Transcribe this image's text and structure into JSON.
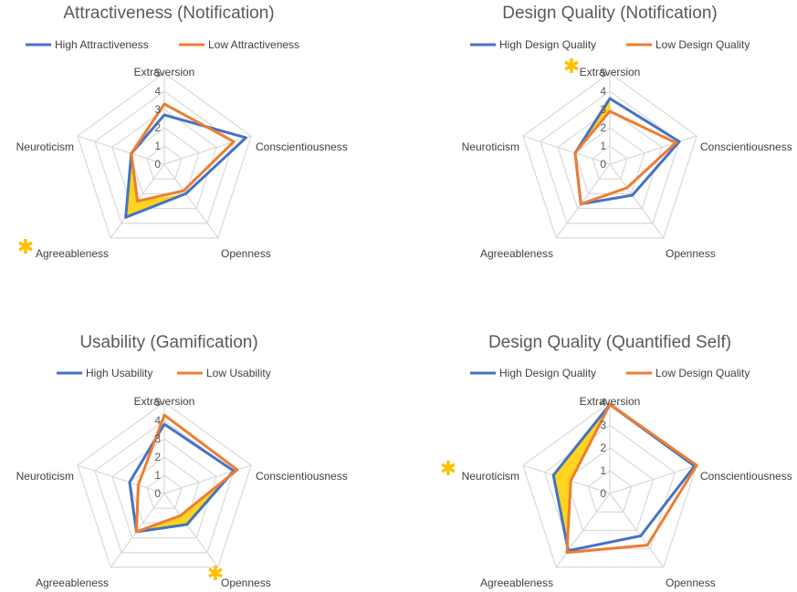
{
  "colors": {
    "high": "#4472C4",
    "low": "#ED7D31",
    "highlight": "#FFD320",
    "star": "#FFC000",
    "grid": "#D9D9D9"
  },
  "chart_data": [
    {
      "type": "radar",
      "title": "Attractiveness (Notification)",
      "axes": [
        "Extraversion",
        "Conscientiousness",
        "Openness",
        "Agreeableness",
        "Neuroticism"
      ],
      "ticks": [
        "0",
        "1",
        "2",
        "3",
        "4",
        "5"
      ],
      "rmax": 5,
      "starred_axis": "Agreeableness",
      "grid": true,
      "legend_position": "top",
      "series": [
        {
          "name": "High Attractiveness",
          "color_key": "high",
          "values": [
            2.7,
            4.7,
            2.0,
            3.6,
            1.9
          ]
        },
        {
          "name": "Low Attractiveness",
          "color_key": "low",
          "values": [
            3.3,
            4.0,
            1.8,
            2.5,
            1.9
          ]
        }
      ]
    },
    {
      "type": "radar",
      "title": "Design Quality (Notification)",
      "axes": [
        "Extraversion",
        "Conscientiousness",
        "Openness",
        "Agreeableness",
        "Neuroticism"
      ],
      "ticks": [
        "0",
        "1",
        "2",
        "3",
        "4",
        "5"
      ],
      "rmax": 5,
      "starred_axis": "Extraversion",
      "grid": true,
      "legend_position": "top",
      "series": [
        {
          "name": "High Design Quality",
          "color_key": "high",
          "values": [
            3.6,
            4.0,
            2.1,
            2.7,
            2.0
          ]
        },
        {
          "name": "Low Design Quality",
          "color_key": "low",
          "values": [
            2.9,
            3.8,
            1.6,
            2.7,
            2.0
          ]
        }
      ]
    },
    {
      "type": "radar",
      "title": "Usability (Gamification)",
      "axes": [
        "Extraversion",
        "Conscientiousness",
        "Openness",
        "Agreeableness",
        "Neuroticism"
      ],
      "ticks": [
        "0",
        "1",
        "2",
        "3",
        "4",
        "5"
      ],
      "rmax": 5,
      "starred_axis": "Openness",
      "grid": true,
      "legend_position": "top",
      "series": [
        {
          "name": "High Usability",
          "color_key": "high",
          "values": [
            3.8,
            4.0,
            2.1,
            2.6,
            2.0
          ]
        },
        {
          "name": "Low Usability",
          "color_key": "low",
          "values": [
            4.3,
            4.2,
            1.5,
            2.6,
            1.5
          ]
        }
      ]
    },
    {
      "type": "radar",
      "title": "Design Quality (Quantified Self)",
      "axes": [
        "Extraversion",
        "Conscientiousness",
        "Openness",
        "Agreeableness",
        "Neuroticism"
      ],
      "ticks": [
        "0",
        "1",
        "2",
        "3",
        "4"
      ],
      "rmax": 4,
      "starred_axis": "Neuroticism",
      "grid": true,
      "legend_position": "top",
      "series": [
        {
          "name": "High Design Quality",
          "color_key": "high",
          "values": [
            3.9,
            3.9,
            2.3,
            3.1,
            2.6
          ]
        },
        {
          "name": "Low Design Quality",
          "color_key": "low",
          "values": [
            3.9,
            4.0,
            2.8,
            3.2,
            1.8
          ]
        }
      ]
    }
  ]
}
